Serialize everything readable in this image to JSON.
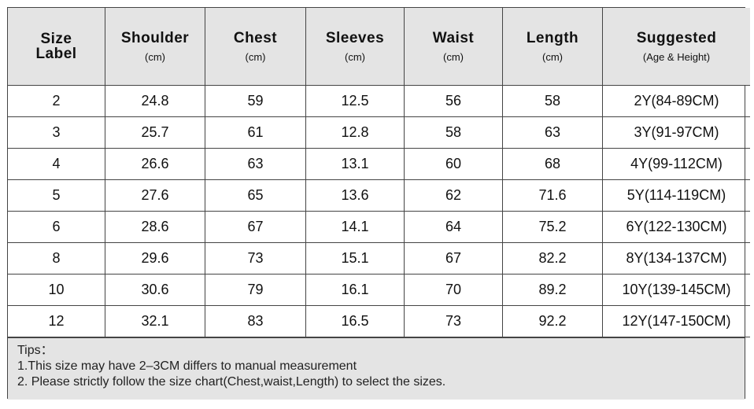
{
  "table": {
    "header": [
      {
        "title": "Size Label"
      },
      {
        "title": "Shoulder",
        "unit": "(cm)"
      },
      {
        "title": "Chest",
        "unit": "(cm)"
      },
      {
        "title": "Sleeves",
        "unit": "(cm)"
      },
      {
        "title": "Waist",
        "unit": "(cm)"
      },
      {
        "title": "Length",
        "unit": "(cm)"
      },
      {
        "title": "Suggested",
        "unit": "(Age & Height)"
      }
    ],
    "rows": [
      [
        "2",
        "24.8",
        "59",
        "12.5",
        "56",
        "58",
        "2Y(84-89CM)"
      ],
      [
        "3",
        "25.7",
        "61",
        "12.8",
        "58",
        "63",
        "3Y(91-97CM)"
      ],
      [
        "4",
        "26.6",
        "63",
        "13.1",
        "60",
        "68",
        "4Y(99-112CM)"
      ],
      [
        "5",
        "27.6",
        "65",
        "13.6",
        "62",
        "71.6",
        "5Y(114-119CM)"
      ],
      [
        "6",
        "28.6",
        "67",
        "14.1",
        "64",
        "75.2",
        "6Y(122-130CM)"
      ],
      [
        "8",
        "29.6",
        "73",
        "15.1",
        "67",
        "82.2",
        "8Y(134-137CM)"
      ],
      [
        "10",
        "30.6",
        "79",
        "16.1",
        "70",
        "89.2",
        "10Y(139-145CM)"
      ],
      [
        "12",
        "32.1",
        "83",
        "16.5",
        "73",
        "92.2",
        "12Y(147-150CM)"
      ]
    ]
  },
  "tips": {
    "title": "Tips：",
    "lines": [
      "1.This size may have 2–3CM differs to manual measurement",
      "2. Please strictly follow the size chart(Chest,waist,Length) to select the sizes."
    ]
  }
}
